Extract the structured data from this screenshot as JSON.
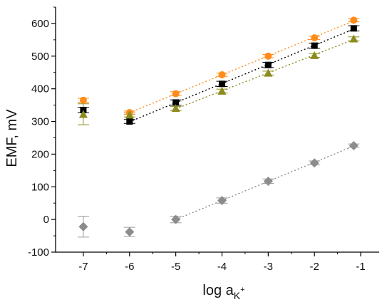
{
  "chart_data": {
    "type": "scatter",
    "title": "",
    "xlabel": {
      "main": "log a",
      "subscript": "K",
      "superscript": "+"
    },
    "ylabel": "EMF, mV",
    "xlim": [
      -7.6,
      -0.6
    ],
    "ylim": [
      -100,
      650
    ],
    "x_ticks": [
      -7,
      -6,
      -5,
      -4,
      -3,
      -2,
      -1
    ],
    "y_ticks": [
      -100,
      0,
      100,
      200,
      300,
      400,
      500,
      600
    ],
    "grid": false,
    "series": [
      {
        "color": "#FF8C1A",
        "marker": "circle",
        "points": [
          {
            "x": -7,
            "y": 365,
            "err": 6
          },
          {
            "x": -6,
            "y": 327,
            "err": 5
          },
          {
            "x": -5,
            "y": 385,
            "err": 6
          },
          {
            "x": -4,
            "y": 443,
            "err": 5
          },
          {
            "x": -3,
            "y": 500,
            "err": 5
          },
          {
            "x": -2,
            "y": 556,
            "err": 5
          },
          {
            "x": -1.15,
            "y": 610,
            "err": 5
          }
        ],
        "fit_range": [
          -6,
          -1.15
        ]
      },
      {
        "color": "#000000",
        "marker": "square",
        "points": [
          {
            "x": -7,
            "y": 335,
            "err": 8
          },
          {
            "x": -6,
            "y": 300,
            "err": 6
          },
          {
            "x": -5,
            "y": 358,
            "err": 8
          },
          {
            "x": -4,
            "y": 415,
            "err": 8
          },
          {
            "x": -3,
            "y": 473,
            "err": 8
          },
          {
            "x": -2,
            "y": 532,
            "err": 8
          },
          {
            "x": -1.15,
            "y": 585,
            "err": 8
          }
        ],
        "fit_range": [
          -6,
          -1.15
        ]
      },
      {
        "color": "#8B8B1E",
        "marker": "triangle",
        "points": [
          {
            "x": -7,
            "y": 322,
            "err": 32
          },
          {
            "x": -6,
            "y": 320,
            "err": 6
          },
          {
            "x": -5,
            "y": 340,
            "err": 6
          },
          {
            "x": -4,
            "y": 393,
            "err": 6
          },
          {
            "x": -3,
            "y": 448,
            "err": 6
          },
          {
            "x": -2,
            "y": 502,
            "err": 6
          },
          {
            "x": -1.15,
            "y": 553,
            "err": 6
          }
        ],
        "fit_range": [
          -5,
          -1.15
        ]
      },
      {
        "color": "#8C8C8C",
        "marker": "diamond",
        "points": [
          {
            "x": -7,
            "y": -22,
            "err": 32
          },
          {
            "x": -6,
            "y": -38,
            "err": 14
          },
          {
            "x": -5,
            "y": 0,
            "err": 10
          },
          {
            "x": -4,
            "y": 58,
            "err": 8
          },
          {
            "x": -3,
            "y": 117,
            "err": 7
          },
          {
            "x": -2,
            "y": 173,
            "err": 6
          },
          {
            "x": -1.15,
            "y": 226,
            "err": 5
          }
        ],
        "fit_range": [
          -5,
          -1.15
        ]
      }
    ]
  }
}
